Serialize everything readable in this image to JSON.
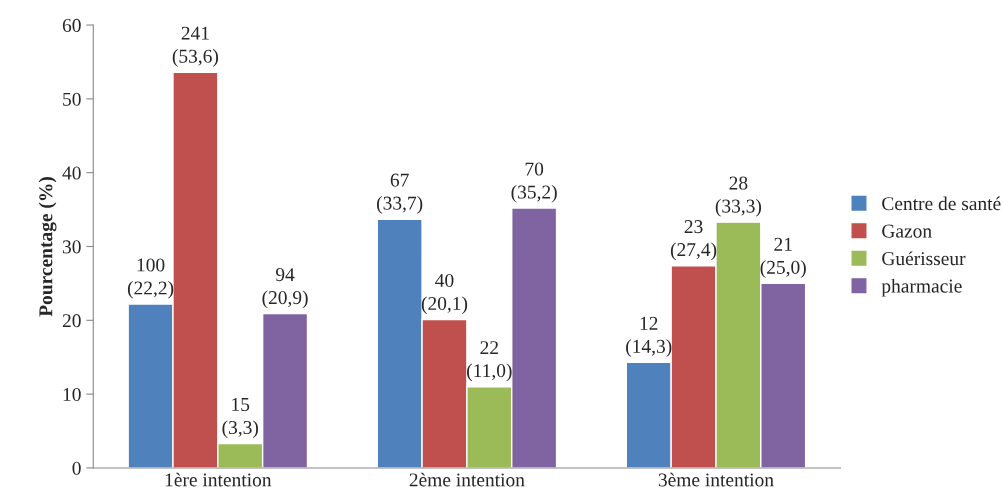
{
  "chart_data": {
    "type": "bar",
    "ylabel": "Pourcentage (%)",
    "categories": [
      "1ère intention",
      "2ème intention",
      "3ème intention"
    ],
    "series": [
      {
        "name": "Centre de santé",
        "color": "#4f81bd",
        "values": [
          22.2,
          33.7,
          14.3
        ],
        "value_labels": [
          "100\n(22,2)",
          "67\n(33,7)",
          "12\n(14,3)"
        ]
      },
      {
        "name": "Gazon",
        "color": "#c0504d",
        "values": [
          53.6,
          20.1,
          27.4
        ],
        "value_labels": [
          "241\n(53,6)",
          "40\n(20,1)",
          "23\n(27,4)"
        ]
      },
      {
        "name": "Guérisseur",
        "color": "#9bbb59",
        "values": [
          3.3,
          11.0,
          33.3
        ],
        "value_labels": [
          "15\n(3,3)",
          "22\n(11,0)",
          "28\n(33,3)"
        ]
      },
      {
        "name": "pharmacie",
        "color": "#8064a2",
        "values": [
          20.9,
          35.2,
          25.0
        ],
        "value_labels": [
          "94\n(20,9)",
          "70\n(35,2)",
          "21\n(25,0)"
        ]
      }
    ],
    "ylim": [
      0,
      60
    ],
    "yticks": [
      0,
      10,
      20,
      30,
      40,
      50,
      60
    ],
    "grid": false,
    "legend": "right"
  }
}
